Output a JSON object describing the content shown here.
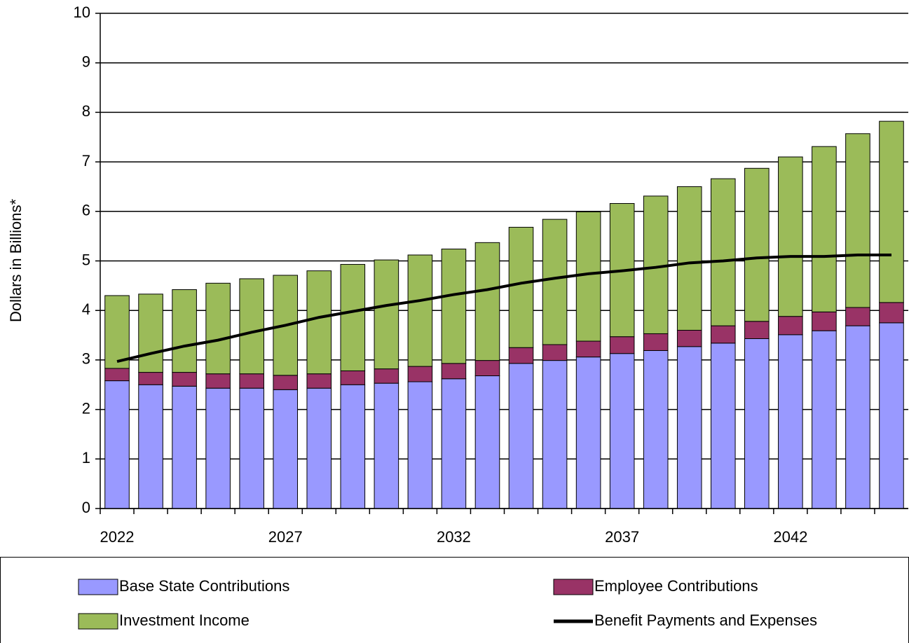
{
  "chart_data": {
    "type": "bar",
    "stacked": true,
    "y_label": "Dollars in Billions*",
    "categories": [
      "2022",
      null,
      null,
      null,
      null,
      "2027",
      null,
      null,
      null,
      null,
      "2032",
      null,
      null,
      null,
      null,
      "2037",
      null,
      null,
      null,
      null,
      "2042",
      null,
      null,
      null
    ],
    "series": [
      {
        "name": "Base State Contributions",
        "color": "#9999ff",
        "values": [
          2.58,
          2.5,
          2.47,
          2.43,
          2.43,
          2.4,
          2.43,
          2.5,
          2.53,
          2.56,
          2.62,
          2.68,
          2.93,
          2.99,
          3.06,
          3.13,
          3.19,
          3.27,
          3.34,
          3.43,
          3.51,
          3.59,
          3.69,
          3.75
        ]
      },
      {
        "name": "Employee Contributions",
        "color": "#993366",
        "values": [
          0.25,
          0.25,
          0.28,
          0.29,
          0.29,
          0.29,
          0.29,
          0.28,
          0.29,
          0.31,
          0.31,
          0.31,
          0.32,
          0.32,
          0.32,
          0.34,
          0.34,
          0.33,
          0.35,
          0.35,
          0.37,
          0.38,
          0.37,
          0.41
        ]
      },
      {
        "name": "Investment Income",
        "color": "#9bbb59",
        "values": [
          1.47,
          1.58,
          1.67,
          1.83,
          1.92,
          2.02,
          2.08,
          2.15,
          2.2,
          2.25,
          2.31,
          2.38,
          2.43,
          2.53,
          2.61,
          2.69,
          2.78,
          2.9,
          2.97,
          3.09,
          3.22,
          3.34,
          3.51,
          3.66
        ]
      },
      {
        "name": "Benefit Payments and Expenses",
        "color": "#000000",
        "type": "line",
        "values": [
          2.97,
          3.13,
          3.28,
          3.4,
          3.56,
          3.7,
          3.86,
          3.98,
          4.1,
          4.2,
          4.32,
          4.42,
          4.55,
          4.65,
          4.74,
          4.8,
          4.87,
          4.96,
          5.0,
          5.06,
          5.09,
          5.09,
          5.12,
          5.12
        ]
      }
    ],
    "ylim": [
      0,
      10
    ],
    "yticks": [
      0,
      1,
      2,
      3,
      4,
      5,
      6,
      7,
      8,
      9,
      10
    ],
    "grid": true,
    "legend": "bottom"
  }
}
